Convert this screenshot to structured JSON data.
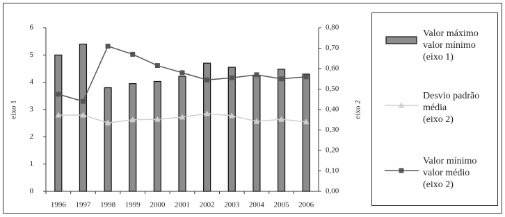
{
  "chart_data": {
    "type": "bar",
    "categories": [
      "1996",
      "1997",
      "1998",
      "1999",
      "2000",
      "2001",
      "2002",
      "2003",
      "2004",
      "2005",
      "2006"
    ],
    "series": [
      {
        "name": "Valor máximo\nvalor mínimo\n(eixo 1)",
        "type": "bar",
        "color": "#8c8c8c",
        "values": [
          5.0,
          5.4,
          3.8,
          3.95,
          4.03,
          4.22,
          4.7,
          4.55,
          4.25,
          4.48,
          4.3
        ]
      },
      {
        "name": "Desvio padrão\nmédia\n(eixo 2)",
        "type": "line",
        "marker": "triangle",
        "axis": "y2",
        "color": "#cfcfcf",
        "values": [
          0.373,
          0.373,
          0.335,
          0.35,
          0.352,
          0.363,
          0.38,
          0.37,
          0.342,
          0.352,
          0.34
        ]
      },
      {
        "name": "Valor mínimo\nvalor médio\n(eixo 2)",
        "type": "line",
        "marker": "square",
        "axis": "y2",
        "color": "#555555",
        "values": [
          0.475,
          0.44,
          0.71,
          0.67,
          0.615,
          0.58,
          0.545,
          0.555,
          0.57,
          0.55,
          0.56
        ]
      }
    ],
    "ylabel": "eixo 1",
    "y2label": "eixo 2",
    "ylim": [
      0,
      6
    ],
    "yticks": [
      0,
      1,
      2,
      3,
      4,
      5,
      6
    ],
    "y2lim": [
      0,
      0.8
    ],
    "y2ticks": [
      {
        "value": 0,
        "label": "0,00"
      },
      {
        "value": 0.1,
        "label": "0,10"
      },
      {
        "value": 0.2,
        "label": "0,20"
      },
      {
        "value": 0.3,
        "label": "0,30"
      },
      {
        "value": 0.4,
        "label": "0,40"
      },
      {
        "value": 0.5,
        "label": "0,50"
      },
      {
        "value": 0.6,
        "label": "0,60"
      },
      {
        "value": 0.7,
        "label": "0,70"
      },
      {
        "value": 0.8,
        "label": "0,80"
      }
    ],
    "grid": false
  }
}
